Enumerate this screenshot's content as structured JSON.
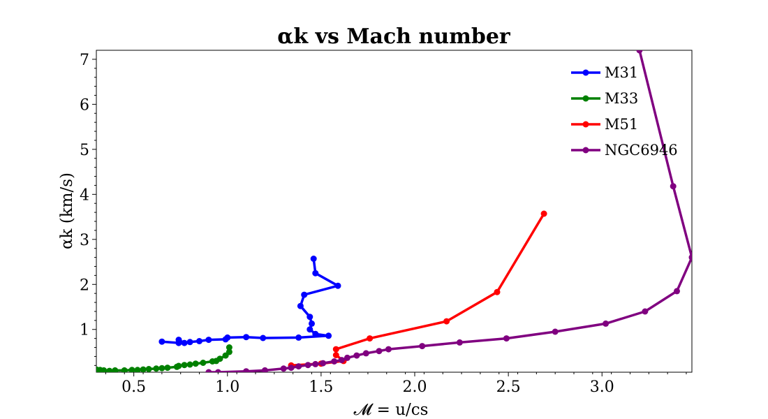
{
  "chart_data": {
    "type": "line",
    "title": "αk vs Mach number",
    "xlabel": "𝓜 = u/cs",
    "ylabel": "αk (km/s)",
    "xlim": [
      0.3,
      3.48
    ],
    "ylim": [
      0.05,
      7.2
    ],
    "xticks": [
      0.5,
      1.0,
      1.5,
      2.0,
      2.5,
      3.0
    ],
    "xtick_labels": [
      "0.5",
      "1.0",
      "1.5",
      "2.0",
      "2.5",
      "3.0"
    ],
    "yticks": [
      1,
      2,
      3,
      4,
      5,
      6,
      7
    ],
    "ytick_labels": [
      "1",
      "2",
      "3",
      "4",
      "5",
      "6",
      "7"
    ],
    "legend_position": "top-right",
    "grid": false,
    "series": [
      {
        "name": "M31",
        "color": "#0000ff",
        "x": [
          1.46,
          1.47,
          1.59,
          1.41,
          1.39,
          1.44,
          1.45,
          1.44,
          1.47,
          1.54,
          1.38,
          1.19,
          1.1,
          1.0,
          0.99,
          0.9,
          0.85,
          0.8,
          0.77,
          0.74,
          0.74,
          0.65
        ],
        "y": [
          2.57,
          2.25,
          1.97,
          1.77,
          1.52,
          1.28,
          1.13,
          1.0,
          0.9,
          0.86,
          0.82,
          0.81,
          0.83,
          0.82,
          0.78,
          0.77,
          0.74,
          0.72,
          0.7,
          0.77,
          0.7,
          0.73
        ]
      },
      {
        "name": "M33",
        "color": "#008000",
        "x": [
          1.01,
          1.01,
          0.99,
          0.96,
          0.94,
          0.92,
          0.87,
          0.83,
          0.8,
          0.77,
          0.74,
          0.73,
          0.68,
          0.65,
          0.62,
          0.58,
          0.55,
          0.52,
          0.49,
          0.45,
          0.4,
          0.37,
          0.34,
          0.32,
          0.3
        ],
        "y": [
          0.6,
          0.5,
          0.42,
          0.35,
          0.3,
          0.29,
          0.26,
          0.24,
          0.22,
          0.21,
          0.19,
          0.17,
          0.15,
          0.14,
          0.13,
          0.12,
          0.11,
          0.1,
          0.1,
          0.09,
          0.09,
          0.08,
          0.09,
          0.1,
          0.11
        ]
      },
      {
        "name": "M51",
        "color": "#ff0000",
        "x": [
          2.69,
          2.44,
          2.17,
          1.76,
          1.58,
          1.58,
          1.62,
          1.5,
          1.34
        ],
        "y": [
          3.57,
          1.83,
          1.18,
          0.8,
          0.56,
          0.43,
          0.3,
          0.24,
          0.2
        ]
      },
      {
        "name": "NGC6946",
        "color": "#800080",
        "x": [
          3.2,
          3.38,
          3.48,
          3.4,
          3.23,
          3.02,
          2.75,
          2.49,
          2.24,
          2.04,
          1.86,
          1.81,
          1.74,
          1.69,
          1.64,
          1.61,
          1.57,
          1.51,
          1.47,
          1.43,
          1.38,
          1.34,
          1.3,
          1.2,
          1.1,
          0.95,
          0.9
        ],
        "y": [
          7.2,
          4.18,
          2.6,
          1.85,
          1.4,
          1.13,
          0.95,
          0.8,
          0.71,
          0.63,
          0.56,
          0.52,
          0.47,
          0.42,
          0.37,
          0.32,
          0.29,
          0.25,
          0.23,
          0.21,
          0.18,
          0.15,
          0.13,
          0.09,
          0.07,
          0.05,
          0.05
        ]
      }
    ]
  }
}
